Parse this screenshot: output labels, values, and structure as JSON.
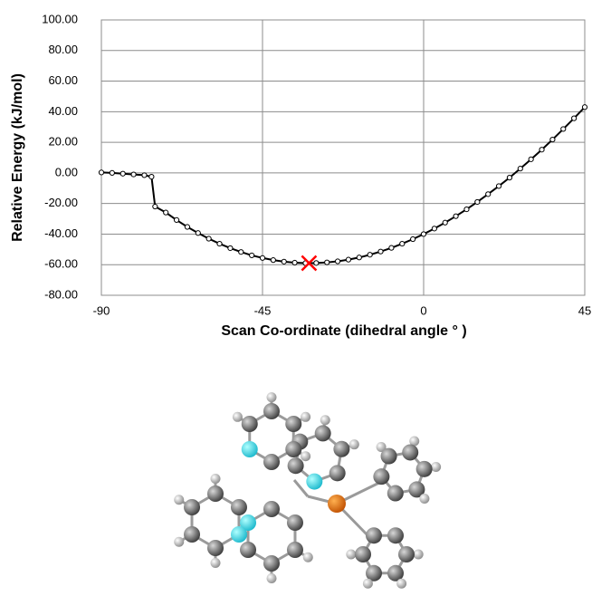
{
  "chart_data": {
    "type": "line",
    "x_label": "Scan Co-ordinate (dihedral angle ° )",
    "y_label": "Relative Energy (kJ/mol)",
    "xlim": [
      -90,
      45
    ],
    "xticks": [
      -90,
      -45,
      0,
      45
    ],
    "ylim": [
      -80,
      100
    ],
    "yticks": [
      {
        "value": -80,
        "label": "-80.00"
      },
      {
        "value": -60,
        "label": "-60.00"
      },
      {
        "value": -40,
        "label": "-40.00"
      },
      {
        "value": -20,
        "label": "-20.00"
      },
      {
        "value": 0,
        "label": "0.00"
      },
      {
        "value": 20,
        "label": "20.00"
      },
      {
        "value": 40,
        "label": "40.00"
      },
      {
        "value": 60,
        "label": "60.00"
      },
      {
        "value": 80,
        "label": "80.00"
      },
      {
        "value": 100,
        "label": "100.00"
      }
    ],
    "grid": true,
    "x": [
      -90,
      -87,
      -84,
      -81,
      -78,
      -76,
      -75,
      -72,
      -69,
      -66,
      -63,
      -60,
      -57,
      -54,
      -51,
      -48,
      -45,
      -42,
      -39,
      -36,
      -33,
      -30,
      -27,
      -24,
      -21,
      -18,
      -15,
      -12,
      -9,
      -6,
      -3,
      0,
      3,
      6,
      9,
      12,
      15,
      18,
      21,
      24,
      27,
      30,
      33,
      36,
      39,
      42,
      45
    ],
    "series": [
      {
        "color": "#000000",
        "values": [
          0.3,
          0,
          -0.5,
          -1,
          -1.5,
          -2.5,
          -22,
          -25.9,
          -30.8,
          -35.3,
          -39.3,
          -43.0,
          -46.3,
          -49.2,
          -51.7,
          -53.9,
          -55.6,
          -57.0,
          -58.0,
          -58.7,
          -59.0,
          -58.9,
          -58.5,
          -57.8,
          -56.7,
          -55.3,
          -53.5,
          -51.4,
          -49.0,
          -46.3,
          -43.3,
          -40.0,
          -36.4,
          -32.5,
          -28.3,
          -23.8,
          -19.0,
          -13.9,
          -8.6,
          -3.1,
          2.8,
          8.9,
          15.2,
          21.8,
          28.7,
          35.7,
          43.0
        ]
      }
    ],
    "highlight": {
      "x": -32,
      "y": -59,
      "color": "#ff0000"
    }
  }
}
